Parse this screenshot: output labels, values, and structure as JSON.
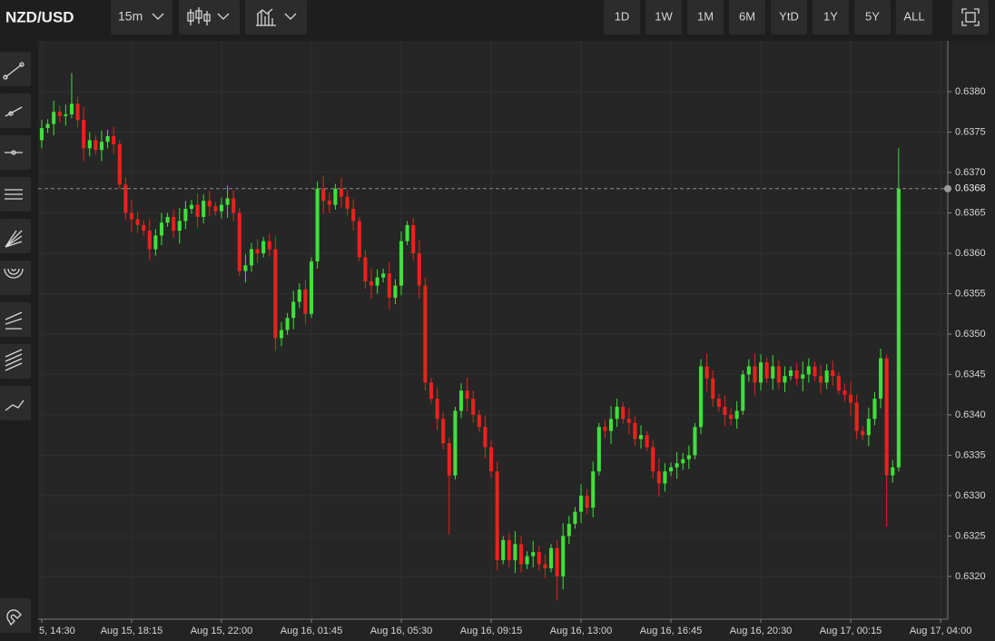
{
  "toolbar": {
    "symbol": "NZD/USD",
    "interval": "15m",
    "ranges": [
      "1D",
      "1W",
      "1M",
      "6M",
      "YtD",
      "1Y",
      "5Y",
      "ALL"
    ]
  },
  "chart_data": {
    "type": "candlestick",
    "up_color": "#3fe03a",
    "down_color": "#e8231c",
    "grid": true,
    "ylim": [
      0.63147,
      0.63863
    ],
    "yticks": [
      {
        "value": 0.632,
        "label": "0.6320"
      },
      {
        "value": 0.6325,
        "label": "0.6325"
      },
      {
        "value": 0.633,
        "label": "0.6330"
      },
      {
        "value": 0.6335,
        "label": "0.6335"
      },
      {
        "value": 0.634,
        "label": "0.6340"
      },
      {
        "value": 0.6345,
        "label": "0.6345"
      },
      {
        "value": 0.635,
        "label": "0.6350"
      },
      {
        "value": 0.6355,
        "label": "0.6355"
      },
      {
        "value": 0.636,
        "label": "0.6360"
      },
      {
        "value": 0.6365,
        "label": "0.6365"
      },
      {
        "value": 0.637,
        "label": "0.6370"
      },
      {
        "value": 0.6375,
        "label": "0.6375"
      },
      {
        "value": 0.638,
        "label": "0.6380"
      }
    ],
    "xlim": [
      -0.6,
      151.2
    ],
    "xticks": [
      {
        "value": 0,
        "label": "5, 14:30"
      },
      {
        "value": 15,
        "label": "Aug 15, 18:15"
      },
      {
        "value": 30,
        "label": "Aug 15, 22:00"
      },
      {
        "value": 45,
        "label": "Aug 16, 01:45"
      },
      {
        "value": 60,
        "label": "Aug 16, 05:30"
      },
      {
        "value": 75,
        "label": "Aug 16, 09:15"
      },
      {
        "value": 90,
        "label": "Aug 16, 13:00"
      },
      {
        "value": 105,
        "label": "Aug 16, 16:45"
      },
      {
        "value": 120,
        "label": "Aug 16, 20:30"
      },
      {
        "value": 135,
        "label": "Aug 17, 00:15"
      },
      {
        "value": 150,
        "label": "Aug 17, 04:00"
      }
    ],
    "price_line": {
      "value": 0.6368,
      "label": "0.6368"
    },
    "candles": [
      [
        0.6374,
        0.63765,
        0.6373,
        0.63755
      ],
      [
        0.63755,
        0.63766,
        0.63749,
        0.6376
      ],
      [
        0.6376,
        0.63789,
        0.63746,
        0.63775
      ],
      [
        0.63775,
        0.63783,
        0.63762,
        0.6377
      ],
      [
        0.6377,
        0.63784,
        0.63758,
        0.63772
      ],
      [
        0.63772,
        0.63823,
        0.63767,
        0.63785
      ],
      [
        0.63785,
        0.63794,
        0.63756,
        0.63765
      ],
      [
        0.63765,
        0.63781,
        0.63714,
        0.6373
      ],
      [
        0.6373,
        0.6375,
        0.6372,
        0.6374
      ],
      [
        0.6374,
        0.63746,
        0.63722,
        0.63728
      ],
      [
        0.63728,
        0.63752,
        0.63714,
        0.63738
      ],
      [
        0.63738,
        0.63753,
        0.6373,
        0.63745
      ],
      [
        0.63745,
        0.63757,
        0.63723,
        0.63735
      ],
      [
        0.63735,
        0.6374,
        0.6368,
        0.63685
      ],
      [
        0.63685,
        0.63694,
        0.63641,
        0.6365
      ],
      [
        0.6365,
        0.63666,
        0.63626,
        0.63642
      ],
      [
        0.63642,
        0.63652,
        0.63625,
        0.63635
      ],
      [
        0.63635,
        0.63641,
        0.63622,
        0.63628
      ],
      [
        0.63628,
        0.63642,
        0.63591,
        0.63605
      ],
      [
        0.63605,
        0.6363,
        0.63597,
        0.63622
      ],
      [
        0.63622,
        0.6365,
        0.6361,
        0.63638
      ],
      [
        0.63638,
        0.6365,
        0.63633,
        0.63645
      ],
      [
        0.63645,
        0.63654,
        0.63619,
        0.63628
      ],
      [
        0.63628,
        0.63656,
        0.63612,
        0.6364
      ],
      [
        0.6364,
        0.63665,
        0.6363,
        0.63655
      ],
      [
        0.63655,
        0.63666,
        0.63649,
        0.6366
      ],
      [
        0.6366,
        0.63674,
        0.63631,
        0.63645
      ],
      [
        0.63645,
        0.63673,
        0.63637,
        0.63665
      ],
      [
        0.63665,
        0.63677,
        0.63646,
        0.63658
      ],
      [
        0.63658,
        0.63663,
        0.63647,
        0.63652
      ],
      [
        0.63652,
        0.63669,
        0.63643,
        0.6366
      ],
      [
        0.6366,
        0.63684,
        0.63644,
        0.63668
      ],
      [
        0.63668,
        0.63678,
        0.6364,
        0.6365
      ],
      [
        0.6365,
        0.63656,
        0.63572,
        0.63578
      ],
      [
        0.63578,
        0.63599,
        0.63564,
        0.63585
      ],
      [
        0.63585,
        0.63613,
        0.63577,
        0.63605
      ],
      [
        0.63605,
        0.63617,
        0.63588,
        0.636
      ],
      [
        0.636,
        0.6362,
        0.63595,
        0.63615
      ],
      [
        0.63615,
        0.63624,
        0.63596,
        0.63605
      ],
      [
        0.63605,
        0.63621,
        0.63479,
        0.63495
      ],
      [
        0.63495,
        0.63515,
        0.63485,
        0.63505
      ],
      [
        0.63505,
        0.63526,
        0.63499,
        0.6352
      ],
      [
        0.6352,
        0.63554,
        0.63506,
        0.6354
      ],
      [
        0.6354,
        0.63563,
        0.63532,
        0.63555
      ],
      [
        0.63555,
        0.63567,
        0.63513,
        0.63525
      ],
      [
        0.63525,
        0.63595,
        0.6352,
        0.6359
      ],
      [
        0.6359,
        0.63689,
        0.63581,
        0.6368
      ],
      [
        0.6368,
        0.63696,
        0.63649,
        0.63665
      ],
      [
        0.63665,
        0.63675,
        0.6365,
        0.6366
      ],
      [
        0.6366,
        0.63686,
        0.63654,
        0.6368
      ],
      [
        0.6368,
        0.63694,
        0.63656,
        0.6367
      ],
      [
        0.6367,
        0.63678,
        0.63647,
        0.63655
      ],
      [
        0.63655,
        0.63667,
        0.63628,
        0.6364
      ],
      [
        0.6364,
        0.63645,
        0.6359,
        0.63595
      ],
      [
        0.63595,
        0.63604,
        0.63556,
        0.63565
      ],
      [
        0.63565,
        0.63581,
        0.63544,
        0.6356
      ],
      [
        0.6356,
        0.6358,
        0.6355,
        0.6357
      ],
      [
        0.6357,
        0.63581,
        0.63564,
        0.63575
      ],
      [
        0.63575,
        0.63589,
        0.63531,
        0.63545
      ],
      [
        0.63545,
        0.63568,
        0.63537,
        0.6356
      ],
      [
        0.6356,
        0.63627,
        0.63548,
        0.63615
      ],
      [
        0.63615,
        0.6364,
        0.6361,
        0.63635
      ],
      [
        0.63635,
        0.63644,
        0.63591,
        0.636
      ],
      [
        0.636,
        0.63616,
        0.63544,
        0.6356
      ],
      [
        0.6356,
        0.6357,
        0.6343,
        0.6344
      ],
      [
        0.6344,
        0.63446,
        0.63414,
        0.6342
      ],
      [
        0.6342,
        0.63434,
        0.63381,
        0.63395
      ],
      [
        0.63395,
        0.63403,
        0.63357,
        0.63365
      ],
      [
        0.63365,
        0.63372,
        0.63252,
        0.63325
      ],
      [
        0.63325,
        0.6341,
        0.6332,
        0.63405
      ],
      [
        0.63405,
        0.63439,
        0.63396,
        0.6343
      ],
      [
        0.6343,
        0.63446,
        0.63404,
        0.6342
      ],
      [
        0.6342,
        0.6343,
        0.6339,
        0.634
      ],
      [
        0.634,
        0.63406,
        0.63379,
        0.63385
      ],
      [
        0.63385,
        0.63399,
        0.63346,
        0.6336
      ],
      [
        0.6336,
        0.63368,
        0.63322,
        0.6333
      ],
      [
        0.6333,
        0.63342,
        0.63208,
        0.6322
      ],
      [
        0.6322,
        0.6325,
        0.63215,
        0.63245
      ],
      [
        0.63245,
        0.63254,
        0.63211,
        0.6322
      ],
      [
        0.6322,
        0.63256,
        0.63204,
        0.6324
      ],
      [
        0.6324,
        0.6325,
        0.63205,
        0.63215
      ],
      [
        0.63215,
        0.63231,
        0.63209,
        0.63225
      ],
      [
        0.63225,
        0.63244,
        0.63211,
        0.6323
      ],
      [
        0.6323,
        0.63238,
        0.63207,
        0.63215
      ],
      [
        0.63215,
        0.63227,
        0.63198,
        0.6321
      ],
      [
        0.6321,
        0.6324,
        0.63205,
        0.63235
      ],
      [
        0.63235,
        0.63245,
        0.6317,
        0.632
      ],
      [
        0.632,
        0.63266,
        0.63184,
        0.6325
      ],
      [
        0.6325,
        0.63275,
        0.6324,
        0.63265
      ],
      [
        0.63265,
        0.63286,
        0.63259,
        0.6328
      ],
      [
        0.6328,
        0.63314,
        0.63266,
        0.633
      ],
      [
        0.633,
        0.63308,
        0.63277,
        0.63285
      ],
      [
        0.63285,
        0.63342,
        0.63273,
        0.6333
      ],
      [
        0.6333,
        0.6339,
        0.63325,
        0.63385
      ],
      [
        0.63385,
        0.63394,
        0.63371,
        0.6338
      ],
      [
        0.6338,
        0.63411,
        0.63364,
        0.63395
      ],
      [
        0.63395,
        0.6342,
        0.63385,
        0.6341
      ],
      [
        0.6341,
        0.63416,
        0.63389,
        0.63395
      ],
      [
        0.63395,
        0.63409,
        0.63376,
        0.6339
      ],
      [
        0.6339,
        0.63398,
        0.63362,
        0.6337
      ],
      [
        0.6337,
        0.63387,
        0.63358,
        0.63375
      ],
      [
        0.63375,
        0.6338,
        0.63355,
        0.6336
      ],
      [
        0.6336,
        0.63369,
        0.63321,
        0.6333
      ],
      [
        0.6333,
        0.63346,
        0.63299,
        0.63315
      ],
      [
        0.63315,
        0.6334,
        0.63305,
        0.6333
      ],
      [
        0.6333,
        0.63341,
        0.63324,
        0.63335
      ],
      [
        0.63335,
        0.63354,
        0.63321,
        0.6334
      ],
      [
        0.6334,
        0.63353,
        0.63332,
        0.63345
      ],
      [
        0.63345,
        0.63362,
        0.63333,
        0.6335
      ],
      [
        0.6335,
        0.6339,
        0.63345,
        0.63385
      ],
      [
        0.63385,
        0.63469,
        0.63376,
        0.6346
      ],
      [
        0.6346,
        0.63476,
        0.63429,
        0.63445
      ],
      [
        0.63445,
        0.63455,
        0.6341,
        0.6342
      ],
      [
        0.6342,
        0.63426,
        0.63404,
        0.6341
      ],
      [
        0.6341,
        0.63424,
        0.63386,
        0.634
      ],
      [
        0.634,
        0.63408,
        0.63387,
        0.63395
      ],
      [
        0.63395,
        0.63417,
        0.63383,
        0.63405
      ],
      [
        0.63405,
        0.63455,
        0.634,
        0.6345
      ],
      [
        0.6345,
        0.63469,
        0.63441,
        0.6346
      ],
      [
        0.6346,
        0.63476,
        0.63424,
        0.6344
      ],
      [
        0.6344,
        0.63475,
        0.6343,
        0.63465
      ],
      [
        0.63465,
        0.63471,
        0.63439,
        0.63445
      ],
      [
        0.63445,
        0.63474,
        0.63431,
        0.6346
      ],
      [
        0.6346,
        0.63468,
        0.63432,
        0.6344
      ],
      [
        0.6344,
        0.6346,
        0.63428,
        0.63448
      ],
      [
        0.63448,
        0.6346,
        0.63443,
        0.63455
      ],
      [
        0.63455,
        0.63464,
        0.63436,
        0.63445
      ],
      [
        0.63445,
        0.63466,
        0.63429,
        0.6345
      ],
      [
        0.6345,
        0.6347,
        0.6344,
        0.6346
      ],
      [
        0.6346,
        0.63466,
        0.63442,
        0.63448
      ],
      [
        0.63448,
        0.63462,
        0.63426,
        0.6344
      ],
      [
        0.6344,
        0.63463,
        0.63432,
        0.63455
      ],
      [
        0.63455,
        0.63467,
        0.63436,
        0.63448
      ],
      [
        0.63448,
        0.63453,
        0.63425,
        0.6343
      ],
      [
        0.6343,
        0.63439,
        0.63416,
        0.63425
      ],
      [
        0.63425,
        0.63441,
        0.63399,
        0.63415
      ],
      [
        0.63415,
        0.63425,
        0.6337,
        0.6338
      ],
      [
        0.6338,
        0.63386,
        0.63369,
        0.63375
      ],
      [
        0.63375,
        0.63409,
        0.63361,
        0.63395
      ],
      [
        0.63395,
        0.63428,
        0.63387,
        0.6342
      ],
      [
        0.6342,
        0.63482,
        0.63408,
        0.6347
      ],
      [
        0.6347,
        0.63475,
        0.63262,
        0.63325
      ],
      [
        0.63325,
        0.63344,
        0.63316,
        0.63335
      ],
      [
        0.63335,
        0.6373,
        0.6333,
        0.6368
      ]
    ]
  }
}
